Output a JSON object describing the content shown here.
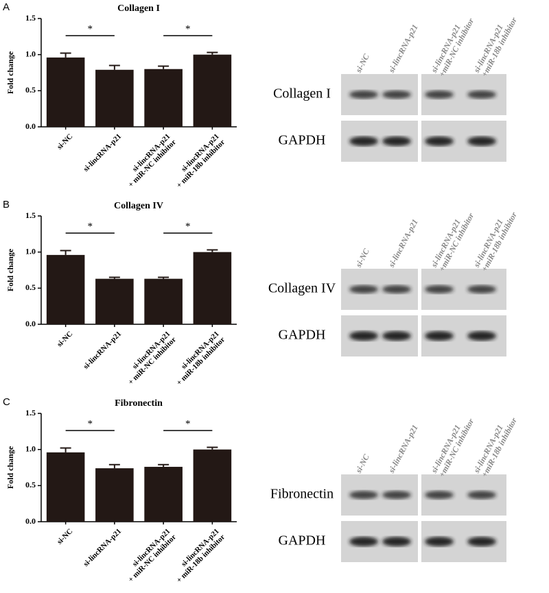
{
  "panels": [
    "A",
    "B",
    "C"
  ],
  "chart_data": [
    {
      "type": "bar",
      "title": "Collagen I",
      "ylabel": "Fold change",
      "categories": [
        "si-NC",
        "si-lincRNA-p21",
        "si-lincRNA-p21\n+ miR-NC inhibitor",
        "si-lincRNA-p21\n+ miR-18b inhibitor"
      ],
      "values": [
        0.96,
        0.79,
        0.8,
        1.0
      ],
      "errors": [
        0.06,
        0.06,
        0.04,
        0.03
      ],
      "color": "#231815",
      "ylim": [
        0,
        1.5
      ],
      "yticks": [
        {
          "value": 0,
          "label": "0.0"
        },
        0.5,
        {
          "value": 1,
          "label": "1.0"
        },
        1.5
      ],
      "significance": [
        {
          "between": [
            0,
            1
          ],
          "label": "*"
        },
        {
          "between": [
            2,
            3
          ],
          "label": "*"
        }
      ]
    },
    {
      "type": "bar",
      "title": "Collagen IV",
      "ylabel": "Fold change",
      "categories": [
        "si-NC",
        "si-lincRNA-p21",
        "si-lincRNA-p21\n+ miR-NC inhibitor",
        "si-lincRNA-p21\n+ miR-18b inhibitor"
      ],
      "values": [
        0.96,
        0.63,
        0.63,
        1.0
      ],
      "errors": [
        0.06,
        0.02,
        0.02,
        0.03
      ],
      "color": "#231815",
      "ylim": [
        0,
        1.5
      ],
      "yticks": [
        {
          "value": 0,
          "label": "0.0"
        },
        0.5,
        {
          "value": 1,
          "label": "1.0"
        },
        1.5
      ],
      "significance": [
        {
          "between": [
            0,
            1
          ],
          "label": "*"
        },
        {
          "between": [
            2,
            3
          ],
          "label": "*"
        }
      ]
    },
    {
      "type": "bar",
      "title": "Fibronectin",
      "ylabel": "Fold change",
      "categories": [
        "si-NC",
        "si-lincRNA-p21",
        "si-lincRNA-p21\n+ miR-NC inhibitor",
        "si-lincRNA-p21\n+ miR-18b inhibitor"
      ],
      "values": [
        0.96,
        0.74,
        0.76,
        1.0
      ],
      "errors": [
        0.06,
        0.05,
        0.03,
        0.03
      ],
      "color": "#231815",
      "ylim": [
        0,
        1.5
      ],
      "yticks": [
        {
          "value": 0,
          "label": "0.0"
        },
        0.5,
        {
          "value": 1,
          "label": "1.0"
        },
        1.5
      ],
      "significance": [
        {
          "between": [
            0,
            1
          ],
          "label": "*"
        },
        {
          "between": [
            2,
            3
          ],
          "label": "*"
        }
      ]
    }
  ],
  "blots": [
    {
      "lanes": [
        "si-NC",
        "si-lincRNA-p21",
        "si-lincRNA-p21\n+miR-NC inhibitor",
        "si-lincRNA-p21\n+miR-18b inhibitor"
      ],
      "rows": [
        "Collagen I",
        "GAPDH"
      ]
    },
    {
      "lanes": [
        "si-NC",
        "si-lincRNA-p21",
        "si-lincRNA-p21\n+miR-NC inhibitor",
        "si-lincRNA-p21\n+miR-18b inhibitor"
      ],
      "rows": [
        "Collagen IV",
        "GAPDH"
      ]
    },
    {
      "lanes": [
        "si-NC",
        "si-lincRNA-p21",
        "si-lincRNA-p21\n+miR-NC inhibitor",
        "si-lincRNA-p21\n+miR-18b inhibitor"
      ],
      "rows": [
        "Fibronectin",
        "GAPDH"
      ]
    }
  ]
}
